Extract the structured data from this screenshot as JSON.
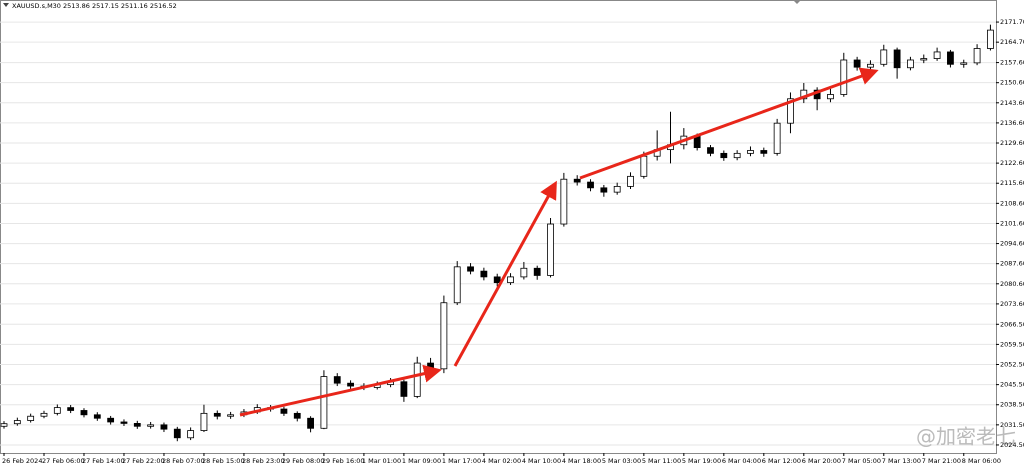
{
  "chart_data": {
    "type": "candlestick",
    "title": "XAUUSD.s,M30  2513.86 2517.15 2511.16 2516.52",
    "watermark": "@加密老七",
    "categories": [
      "26 Feb 2024",
      null,
      null,
      "27 Feb 06:00",
      null,
      null,
      "27 Feb 14:00",
      null,
      null,
      "27 Feb 22:00",
      null,
      null,
      "28 Feb 07:00",
      null,
      null,
      "28 Feb 15:00",
      null,
      null,
      "28 Feb 23:00",
      null,
      null,
      "29 Feb 08:00",
      null,
      null,
      "29 Feb 16:00",
      null,
      null,
      "1 Mar 01:00",
      null,
      null,
      "1 Mar 09:00",
      null,
      null,
      "1 Mar 17:00",
      null,
      null,
      "4 Mar 02:00",
      null,
      null,
      "4 Mar 10:00",
      null,
      null,
      "4 Mar 18:00",
      null,
      null,
      "5 Mar 03:00",
      null,
      null,
      "5 Mar 11:00",
      null,
      null,
      "5 Mar 19:00",
      null,
      null,
      "6 Mar 04:00",
      null,
      null,
      "6 Mar 12:00",
      null,
      null,
      "6 Mar 20:00",
      null,
      null,
      "7 Mar 05:00",
      null,
      null,
      "7 Mar 13:00",
      null,
      null,
      "7 Mar 21:00",
      null,
      null,
      "8 Mar 06:00",
      null,
      null
    ],
    "open": [
      2031,
      2031.9,
      2033,
      2034.5,
      2035.5,
      2037.5,
      2036.5,
      2035,
      2033.8,
      2032.5,
      2032,
      2031,
      2031.5,
      2030,
      2027,
      2029.5,
      2035.5,
      2034.5,
      2035,
      2036,
      2037.5,
      2037,
      2035.5,
      2033.8,
      2030.3,
      2048.3,
      2046,
      2045,
      2044.5,
      2045.5,
      2046.5,
      2041.4,
      2053,
      2051,
      2074,
      2086.5,
      2085,
      2083,
      2081,
      2083,
      2086,
      2083.5,
      2101.4,
      2117,
      2116,
      2114,
      2112.5,
      2114.5,
      2118,
      2125,
      2127.3,
      2129,
      2132,
      2128,
      2126,
      2124.5,
      2126,
      2127,
      2126,
      2136.5,
      2145,
      2148,
      2145,
      2146.5,
      2158.5,
      2156,
      2157,
      2162,
      2155.8,
      2158.5,
      2159,
      2161.3,
      2157,
      2157.5,
      2162.5
    ],
    "high": [
      2032.8,
      2034,
      2035.4,
      2036.4,
      2038.6,
      2038.4,
      2037.3,
      2035.9,
      2034.6,
      2033.4,
      2032.9,
      2032.5,
      2032.3,
      2030.8,
      2030.6,
      2038.5,
      2036.5,
      2036,
      2037,
      2038.7,
      2038.4,
      2037.8,
      2036.2,
      2034.5,
      2050.5,
      2049.5,
      2047,
      2046,
      2046.6,
      2047.8,
      2047.2,
      2055.2,
      2054.8,
      2076.5,
      2088.5,
      2087.8,
      2086.2,
      2084.1,
      2084.3,
      2088.2,
      2086.9,
      2103.5,
      2119.2,
      2118.4,
      2117,
      2115,
      2115.8,
      2119.4,
      2126.6,
      2134,
      2140.5,
      2134.8,
      2132.9,
      2128.9,
      2127,
      2127.1,
      2128.4,
      2128,
      2138,
      2147.2,
      2150.5,
      2149,
      2148.5,
      2161,
      2159.6,
      2158.4,
      2163.8,
      2162.8,
      2159.6,
      2160.4,
      2162.8,
      2162,
      2158.6,
      2164,
      2170.8
    ],
    "low": [
      2030.2,
      2031.2,
      2032.3,
      2033.8,
      2034.8,
      2035.6,
      2034.1,
      2032.9,
      2031.6,
      2031.1,
      2030.1,
      2030.2,
      2029,
      2025.8,
      2026.2,
      2029,
      2033.4,
      2033.6,
      2034.2,
      2035.3,
      2036.1,
      2034.6,
      2032.7,
      2028.9,
      2030,
      2045,
      2044,
      2043.6,
      2043.8,
      2044.6,
      2039.5,
      2040.8,
      2048.5,
      2049.5,
      2073.2,
      2083.9,
      2081.8,
      2079.7,
      2080.2,
      2082.1,
      2082,
      2082.8,
      2100.5,
      2114.8,
      2112.8,
      2110.9,
      2111.6,
      2113.6,
      2117.2,
      2123.5,
      2122.5,
      2127.4,
      2127,
      2125,
      2123.4,
      2123.6,
      2125,
      2124.8,
      2125.2,
      2133,
      2143.5,
      2141,
      2143.8,
      2145.7,
      2154.8,
      2155,
      2156.2,
      2152,
      2154.9,
      2157.4,
      2158.2,
      2155.9,
      2155.8,
      2156.7,
      2161.8
    ],
    "close": [
      2031.9,
      2033,
      2034.5,
      2035.5,
      2037.5,
      2036.5,
      2035,
      2033.8,
      2032.5,
      2032,
      2031,
      2031.5,
      2030,
      2027,
      2029.5,
      2035.5,
      2034.5,
      2035,
      2036,
      2037.5,
      2037,
      2035.5,
      2033.8,
      2030.3,
      2048.3,
      2046,
      2045,
      2044.5,
      2045.5,
      2046.5,
      2041.4,
      2053,
      2051,
      2074,
      2086.5,
      2085,
      2083,
      2081,
      2083,
      2086,
      2083.5,
      2101.4,
      2117,
      2116,
      2114,
      2112.5,
      2114.5,
      2118,
      2125,
      2127.3,
      2129,
      2132,
      2128,
      2126,
      2124.5,
      2126,
      2127,
      2126,
      2136.5,
      2145,
      2148,
      2145,
      2146.5,
      2158.5,
      2156,
      2157,
      2162,
      2155.8,
      2158.5,
      2159,
      2161.3,
      2157,
      2157.5,
      2162.5,
      2168.9
    ],
    "up_color": "#ffffff",
    "down_color": "#000000",
    "wick_color": "#000000",
    "ylim": [
      2021.7,
      2175.9
    ],
    "yticks": [
      {
        "value": 2171.7,
        "label": "2171.70"
      },
      {
        "value": 2164.7,
        "label": "2164.70"
      },
      {
        "value": 2157.6,
        "label": "2157.60"
      },
      {
        "value": 2150.6,
        "label": "2150.60"
      },
      {
        "value": 2143.6,
        "label": "2143.60"
      },
      {
        "value": 2136.6,
        "label": "2136.60"
      },
      {
        "value": 2129.6,
        "label": "2129.60"
      },
      {
        "value": 2122.6,
        "label": "2122.60"
      },
      {
        "value": 2115.6,
        "label": "2115.60"
      },
      {
        "value": 2108.6,
        "label": "2108.60"
      },
      {
        "value": 2101.6,
        "label": "2101.60"
      },
      {
        "value": 2094.6,
        "label": "2094.60"
      },
      {
        "value": 2087.6,
        "label": "2087.60"
      },
      {
        "value": 2080.6,
        "label": "2080.60"
      },
      {
        "value": 2073.6,
        "label": "2073.60"
      },
      {
        "value": 2066.5,
        "label": "2066.50"
      },
      {
        "value": 2059.5,
        "label": "2059.50"
      },
      {
        "value": 2052.5,
        "label": "2052.50"
      },
      {
        "value": 2045.5,
        "label": "2045.50"
      },
      {
        "value": 2038.5,
        "label": "2038.50"
      },
      {
        "value": 2031.5,
        "label": "2031.50"
      },
      {
        "value": 2024.5,
        "label": "2024.50"
      }
    ],
    "grid": true
  }
}
